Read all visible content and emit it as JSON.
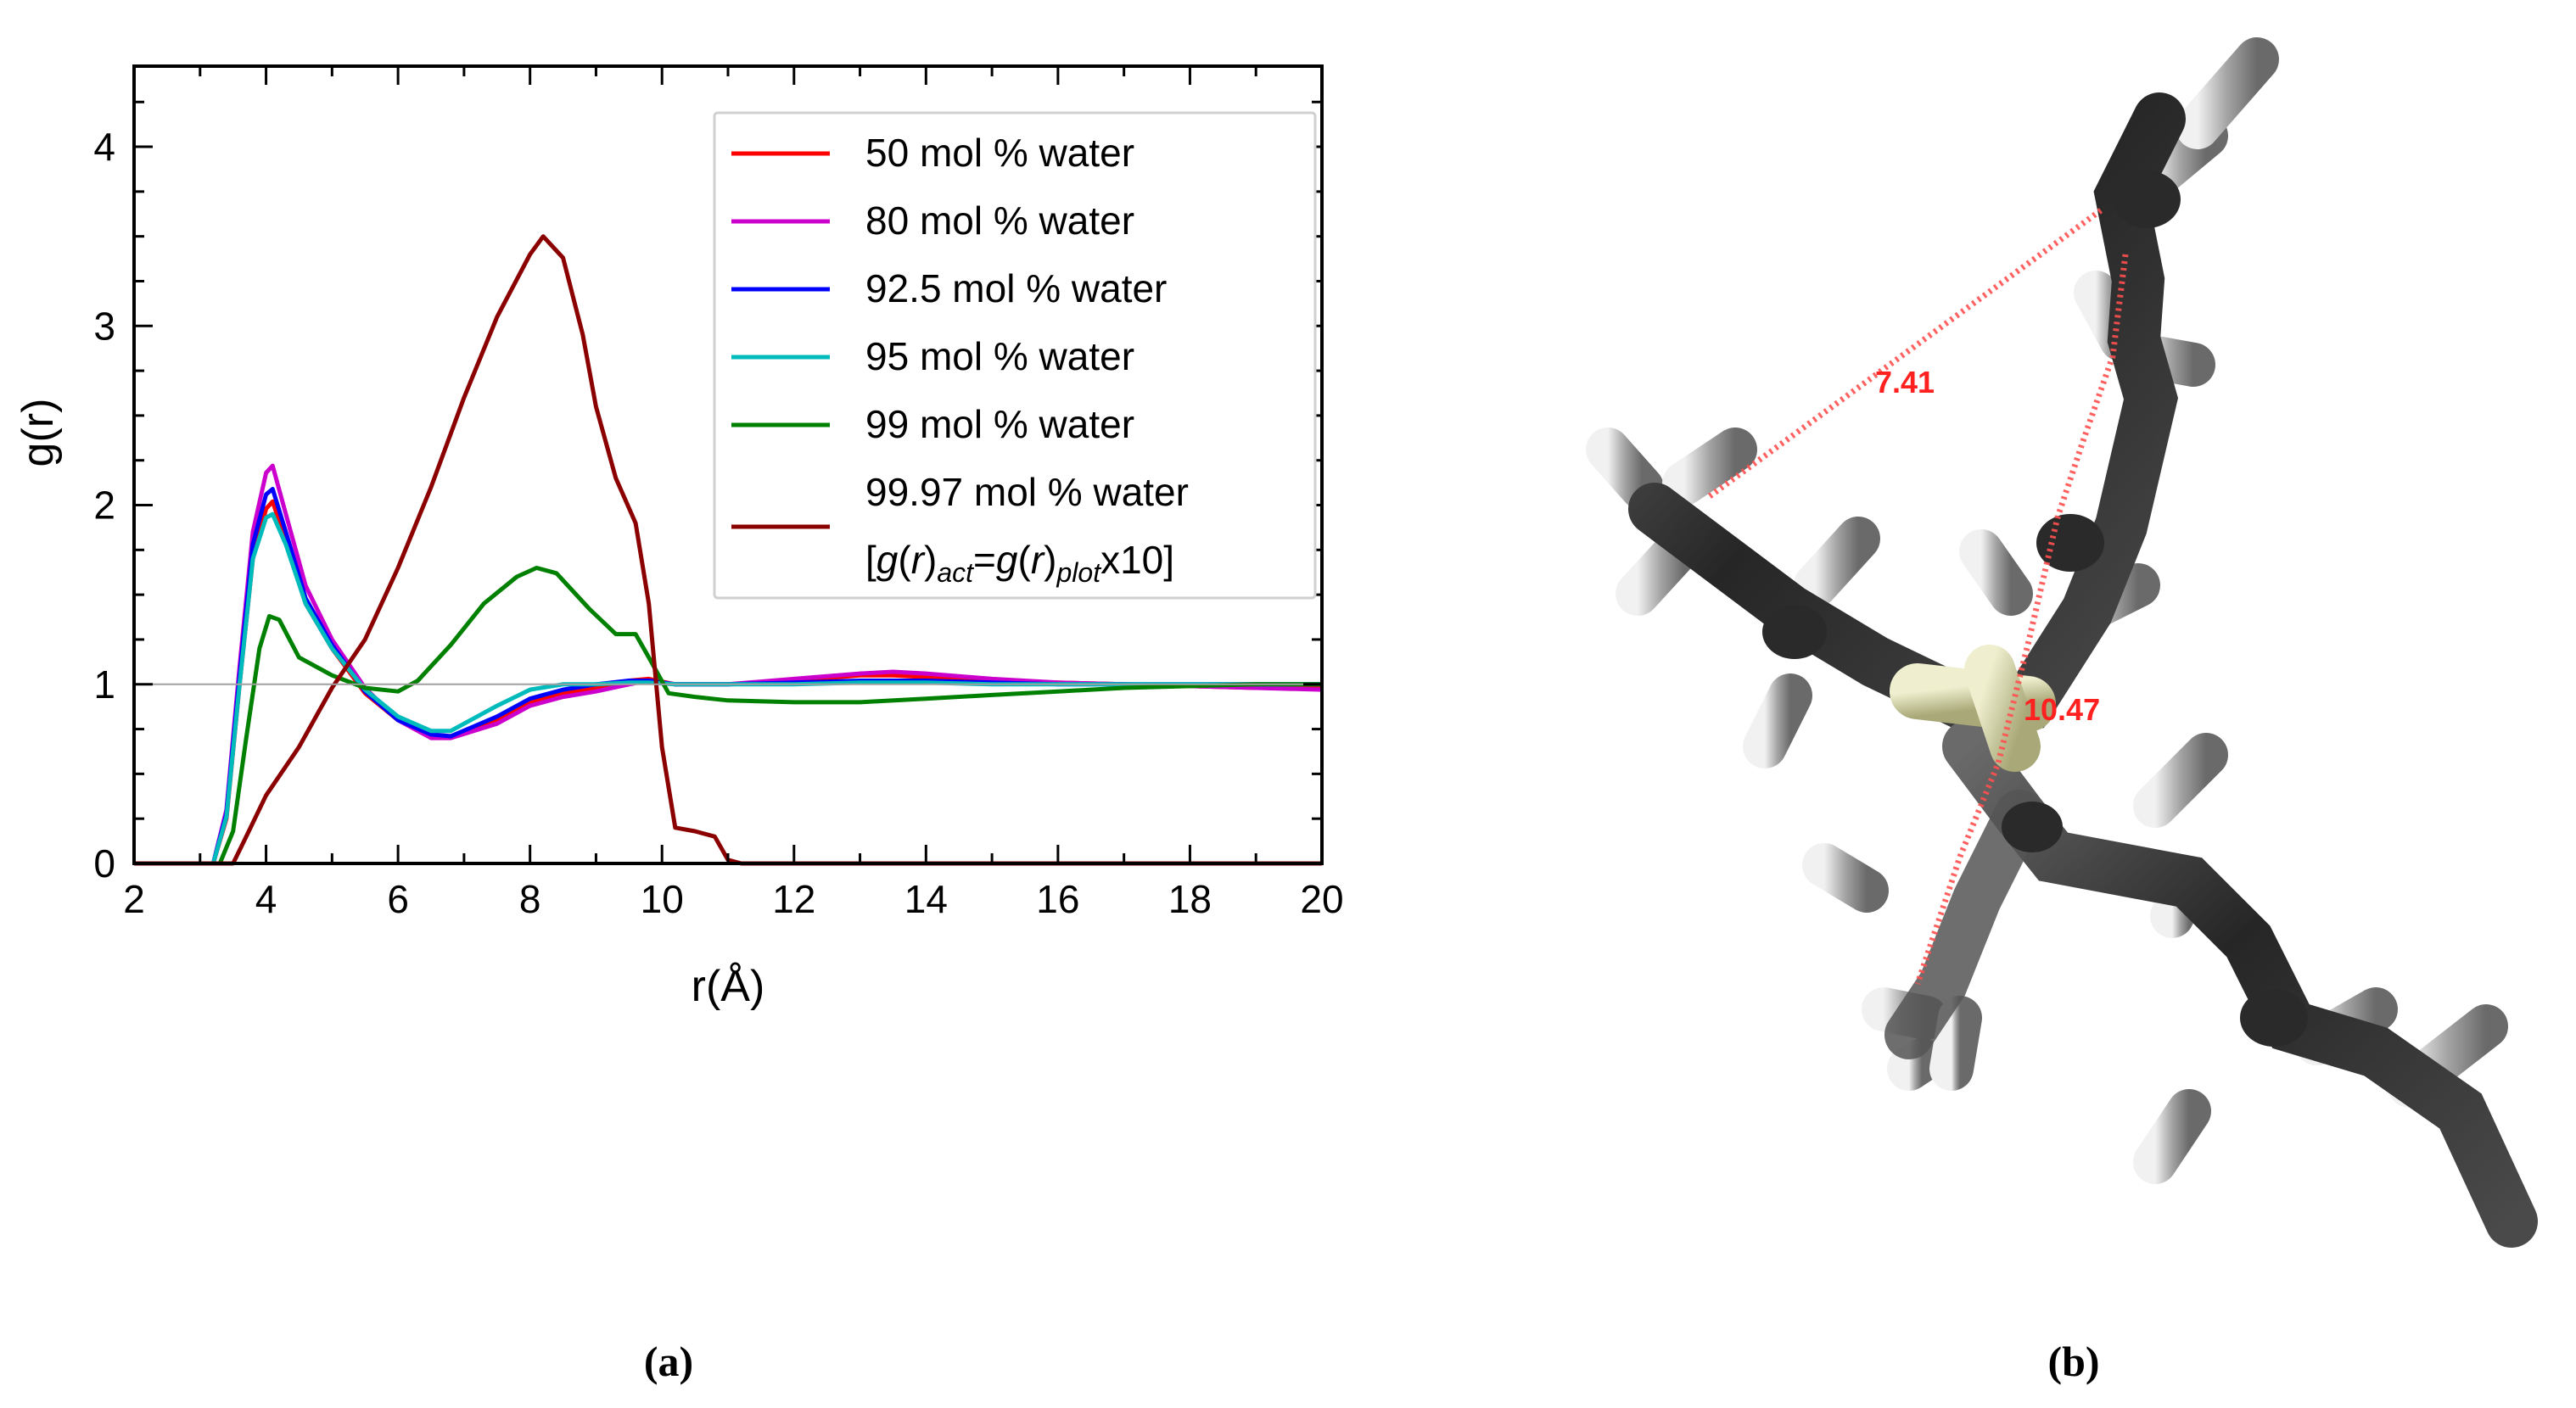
{
  "panel_a_label": "(a)",
  "panel_b_label": "(b)",
  "chart_data": {
    "type": "line",
    "title": "",
    "xlabel": "r(Å)",
    "ylabel": "g(r)",
    "xlim": [
      2,
      20
    ],
    "ylim": [
      0,
      4.45
    ],
    "xticks": [
      2,
      4,
      6,
      8,
      10,
      12,
      14,
      16,
      18,
      20
    ],
    "yticks": [
      0,
      1,
      2,
      3,
      4
    ],
    "reference_line": 1,
    "grid": false,
    "legend_position": "top-right",
    "series": [
      {
        "name": "50 mol % water",
        "color": "#ff0000",
        "x": [
          2,
          3.2,
          3.4,
          3.6,
          3.8,
          4.0,
          4.1,
          4.3,
          4.6,
          5.0,
          5.5,
          6.0,
          6.5,
          6.8,
          7.5,
          8.0,
          8.5,
          9.0,
          9.5,
          9.8,
          10.2,
          11,
          12,
          13,
          13.5,
          14,
          15,
          16,
          17,
          18,
          19,
          20
        ],
        "y": [
          0,
          0,
          0.25,
          1.0,
          1.7,
          1.98,
          2.02,
          1.8,
          1.45,
          1.2,
          0.95,
          0.8,
          0.72,
          0.71,
          0.8,
          0.9,
          0.95,
          0.98,
          1.02,
          1.03,
          1.0,
          1.0,
          1.02,
          1.05,
          1.05,
          1.04,
          1.02,
          1.01,
          1.0,
          0.99,
          0.98,
          0.98
        ]
      },
      {
        "name": "80 mol % water",
        "color": "#cc00cc",
        "x": [
          2,
          3.2,
          3.4,
          3.6,
          3.8,
          4.0,
          4.1,
          4.3,
          4.6,
          5.0,
          5.5,
          6.0,
          6.5,
          6.8,
          7.5,
          8.0,
          8.5,
          9.0,
          9.5,
          9.8,
          10.2,
          11,
          12,
          13,
          13.5,
          14,
          15,
          16,
          17,
          18,
          19,
          20
        ],
        "y": [
          0,
          0,
          0.3,
          1.1,
          1.85,
          2.18,
          2.22,
          1.95,
          1.55,
          1.25,
          0.98,
          0.8,
          0.7,
          0.7,
          0.78,
          0.88,
          0.93,
          0.96,
          1.0,
          1.02,
          1.0,
          1.0,
          1.03,
          1.06,
          1.07,
          1.06,
          1.03,
          1.01,
          1.0,
          0.99,
          0.98,
          0.97
        ]
      },
      {
        "name": "92.5 mol % water",
        "color": "#0000ff",
        "x": [
          2,
          3.2,
          3.4,
          3.6,
          3.8,
          4.0,
          4.1,
          4.3,
          4.6,
          5.0,
          5.5,
          6.0,
          6.5,
          6.8,
          7.5,
          8.0,
          8.5,
          9.0,
          9.5,
          9.8,
          10.2,
          11,
          12,
          13,
          14,
          15,
          16,
          17,
          18,
          19,
          20
        ],
        "y": [
          0,
          0,
          0.28,
          1.05,
          1.78,
          2.06,
          2.09,
          1.85,
          1.48,
          1.22,
          0.96,
          0.8,
          0.72,
          0.71,
          0.82,
          0.92,
          0.97,
          1.0,
          1.02,
          1.02,
          1.0,
          1.0,
          1.01,
          1.02,
          1.02,
          1.01,
          1.0,
          1.0,
          1.0,
          1.0,
          1.0
        ]
      },
      {
        "name": "95 mol % water",
        "color": "#00bbbb",
        "x": [
          2,
          3.2,
          3.4,
          3.6,
          3.8,
          4.0,
          4.1,
          4.3,
          4.6,
          5.0,
          5.5,
          6.0,
          6.5,
          6.8,
          7.5,
          8.0,
          8.5,
          9.0,
          9.5,
          9.8,
          10.2,
          11,
          12,
          13,
          14,
          15,
          16,
          17,
          18,
          19,
          20
        ],
        "y": [
          0,
          0,
          0.26,
          1.0,
          1.7,
          1.93,
          1.95,
          1.78,
          1.45,
          1.2,
          0.97,
          0.82,
          0.74,
          0.74,
          0.88,
          0.97,
          1.0,
          1.0,
          1.01,
          1.01,
          1.0,
          1.0,
          1.0,
          1.01,
          1.01,
          1.0,
          1.0,
          1.0,
          1.0,
          1.0,
          1.0
        ]
      },
      {
        "name": "99 mol % water",
        "color": "#008000",
        "x": [
          2,
          3.3,
          3.5,
          3.7,
          3.9,
          4.05,
          4.2,
          4.5,
          5.0,
          5.5,
          6.0,
          6.3,
          6.8,
          7.3,
          7.8,
          8.1,
          8.4,
          8.9,
          9.3,
          9.6,
          9.8,
          10.1,
          10.5,
          11,
          12,
          13,
          14,
          15,
          16,
          17,
          18,
          19,
          20
        ],
        "y": [
          0,
          0,
          0.18,
          0.7,
          1.2,
          1.38,
          1.36,
          1.15,
          1.05,
          0.98,
          0.96,
          1.02,
          1.22,
          1.45,
          1.6,
          1.65,
          1.62,
          1.42,
          1.28,
          1.28,
          1.15,
          0.95,
          0.93,
          0.91,
          0.9,
          0.9,
          0.92,
          0.94,
          0.96,
          0.98,
          0.99,
          1.0,
          1.0
        ]
      },
      {
        "name": "99.97 mol % water",
        "name_line2": "[g(r)act=g(r)plotx10]",
        "color": "#8b0000",
        "x": [
          2,
          3.5,
          3.7,
          4.0,
          4.5,
          5.0,
          5.5,
          6.0,
          6.5,
          7.0,
          7.5,
          8.0,
          8.2,
          8.5,
          8.8,
          9.0,
          9.3,
          9.6,
          9.8,
          10.0,
          10.2,
          10.5,
          10.8,
          11.0,
          11.2,
          12,
          14,
          16,
          18,
          20
        ],
        "y": [
          0,
          0,
          0.15,
          0.38,
          0.65,
          0.98,
          1.25,
          1.65,
          2.1,
          2.6,
          3.05,
          3.4,
          3.5,
          3.38,
          2.95,
          2.55,
          2.15,
          1.9,
          1.45,
          0.65,
          0.2,
          0.18,
          0.15,
          0.02,
          0,
          0,
          0,
          0,
          0,
          0
        ]
      }
    ]
  },
  "molecule": {
    "measurements": [
      {
        "label": "7.41",
        "color": "#ff3333"
      },
      {
        "label": "10.47",
        "color": "#ff3333"
      }
    ],
    "bond_color": "#3c3c3c",
    "heteroatom_color": "#d8d8a8"
  }
}
